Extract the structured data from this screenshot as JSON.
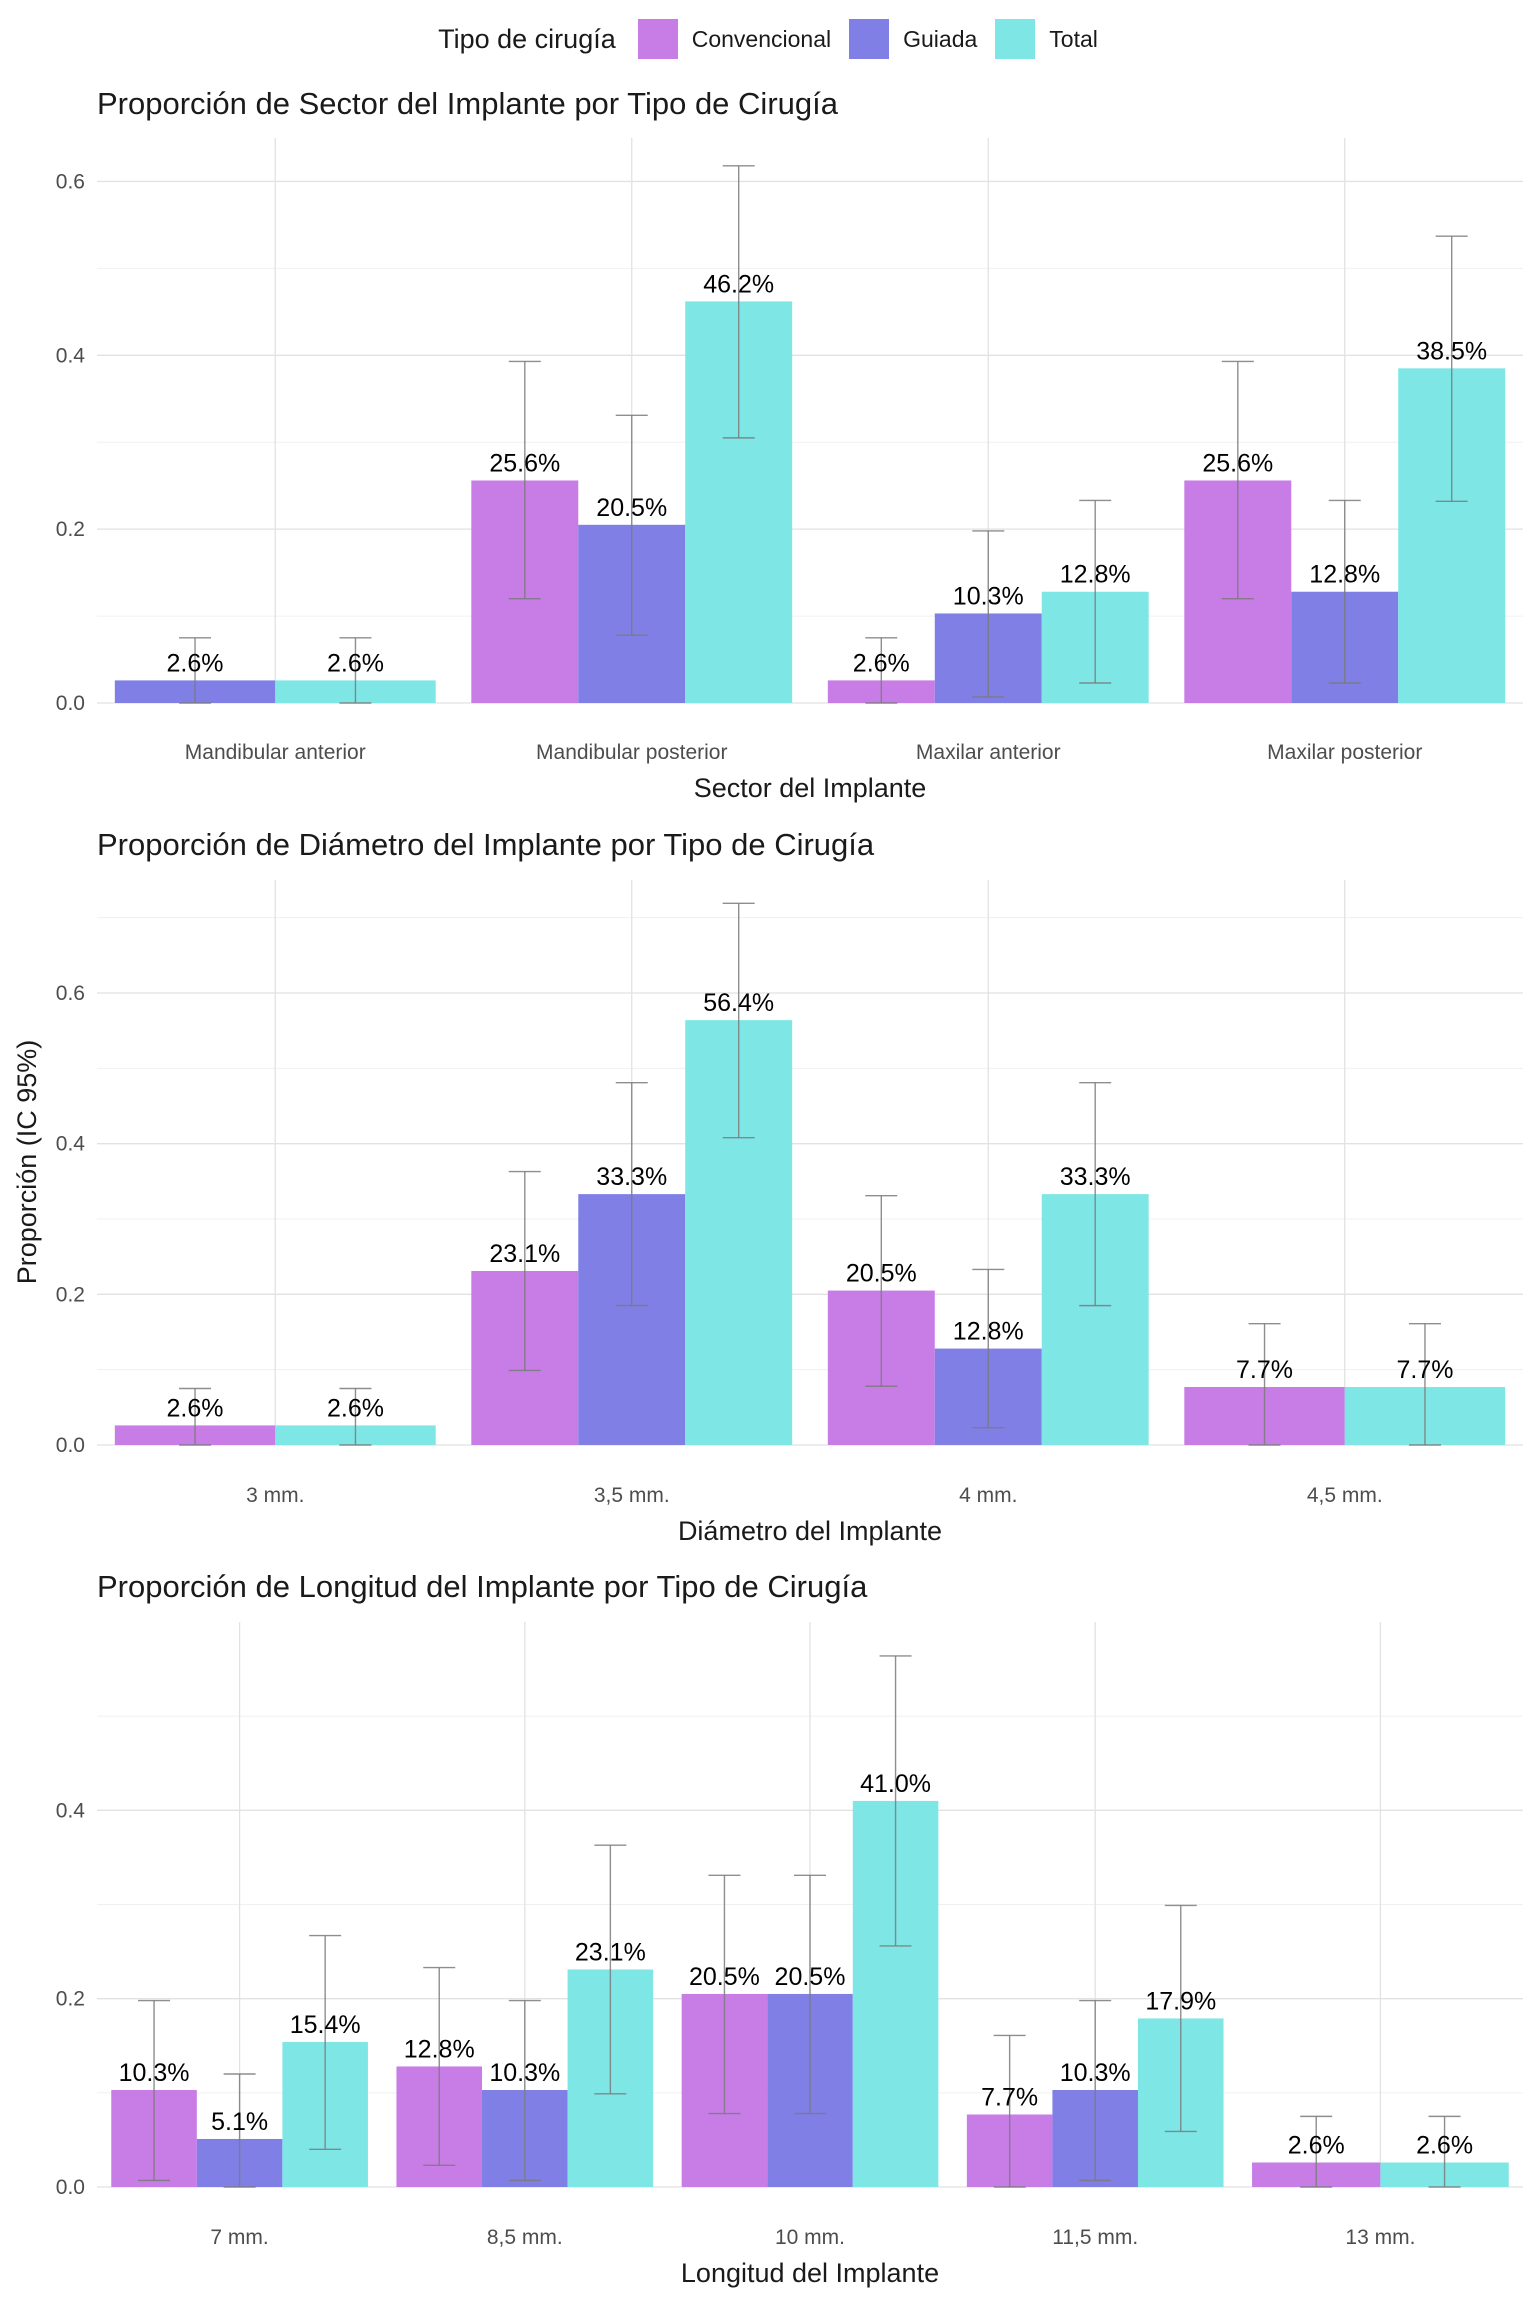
{
  "legend": {
    "title": "Tipo de cirugía",
    "items": [
      {
        "label": "Convencional",
        "color": "#C77CE6"
      },
      {
        "label": "Guiada",
        "color": "#7F7FE6"
      },
      {
        "label": "Total",
        "color": "#7FE6E6"
      }
    ]
  },
  "shared_ylabel": "Proporción (IC 95%)",
  "chart_data": [
    {
      "type": "bar",
      "title": "Proporción de Sector del Implante por Tipo de Cirugía",
      "xlabel": "Sector del Implante",
      "ylabel": "",
      "ylim": [
        0,
        0.65
      ],
      "yticks": [
        0,
        0.2,
        0.4,
        0.6
      ],
      "ytick_labels": [
        "0.0",
        "0.2",
        "0.4",
        "0.6"
      ],
      "grid": true,
      "categories": [
        "Mandibular anterior",
        "Mandibular posterior",
        "Maxilar anterior",
        "Maxilar posterior"
      ],
      "series": [
        {
          "name": "Convencional",
          "values": [
            null,
            0.256,
            0.026,
            0.256
          ],
          "ci_low": [
            null,
            0.12,
            0.0,
            0.12
          ],
          "ci_high": [
            null,
            0.393,
            0.075,
            0.393
          ],
          "labels": [
            null,
            "25.6%",
            "2.6%",
            "25.6%"
          ]
        },
        {
          "name": "Guiada",
          "values": [
            0.026,
            0.205,
            0.103,
            0.128
          ],
          "ci_low": [
            0.0,
            0.078,
            0.007,
            0.023
          ],
          "ci_high": [
            0.075,
            0.331,
            0.198,
            0.233
          ],
          "labels": [
            "2.6%",
            "20.5%",
            "10.3%",
            "12.8%"
          ]
        },
        {
          "name": "Total",
          "values": [
            0.026,
            0.462,
            0.128,
            0.385
          ],
          "ci_low": [
            0.0,
            0.305,
            0.023,
            0.232
          ],
          "ci_high": [
            0.075,
            0.618,
            0.233,
            0.537
          ],
          "labels": [
            "2.6%",
            "46.2%",
            "12.8%",
            "38.5%"
          ]
        }
      ]
    },
    {
      "type": "bar",
      "title": "Proporción de Diámetro del Implante por Tipo de Cirugía",
      "xlabel": "Diámetro del Implante",
      "ylabel": "Proporción (IC 95%)",
      "ylim": [
        0,
        0.75
      ],
      "yticks": [
        0,
        0.2,
        0.4,
        0.6
      ],
      "ytick_labels": [
        "0.0",
        "0.2",
        "0.4",
        "0.6"
      ],
      "grid": true,
      "categories": [
        "3 mm.",
        "3,5 mm.",
        "4 mm.",
        "4,5 mm."
      ],
      "series": [
        {
          "name": "Convencional",
          "values": [
            0.026,
            0.231,
            0.205,
            0.077
          ],
          "ci_low": [
            0.0,
            0.099,
            0.078,
            0.0
          ],
          "ci_high": [
            0.075,
            0.363,
            0.331,
            0.161
          ],
          "labels": [
            "2.6%",
            "23.1%",
            "20.5%",
            "7.7%"
          ]
        },
        {
          "name": "Guiada",
          "values": [
            null,
            0.333,
            0.128,
            null
          ],
          "ci_low": [
            null,
            0.185,
            0.023,
            null
          ],
          "ci_high": [
            null,
            0.481,
            0.233,
            null
          ],
          "labels": [
            null,
            "33.3%",
            "12.8%",
            null
          ]
        },
        {
          "name": "Total",
          "values": [
            0.026,
            0.564,
            0.333,
            0.077
          ],
          "ci_low": [
            0.0,
            0.408,
            0.185,
            0.0
          ],
          "ci_high": [
            0.075,
            0.719,
            0.481,
            0.161
          ],
          "labels": [
            "2.6%",
            "56.4%",
            "33.3%",
            "7.7%"
          ]
        }
      ]
    },
    {
      "type": "bar",
      "title": "Proporción de Longitud del Implante por Tipo de Cirugía",
      "xlabel": "Longitud del Implante",
      "ylabel": "",
      "ylim": [
        0,
        0.6
      ],
      "yticks": [
        0,
        0.2,
        0.4
      ],
      "ytick_labels": [
        "0.0",
        "0.2",
        "0.4"
      ],
      "grid": true,
      "categories": [
        "7 mm.",
        "8,5 mm.",
        "10 mm.",
        "11,5 mm.",
        "13 mm."
      ],
      "series": [
        {
          "name": "Convencional",
          "values": [
            0.103,
            0.128,
            0.205,
            0.077,
            0.026
          ],
          "ci_low": [
            0.007,
            0.023,
            0.078,
            0.0,
            0.0
          ],
          "ci_high": [
            0.198,
            0.233,
            0.331,
            0.161,
            0.075
          ],
          "labels": [
            "10.3%",
            "12.8%",
            "20.5%",
            "7.7%",
            "2.6%"
          ]
        },
        {
          "name": "Guiada",
          "values": [
            0.051,
            0.103,
            0.205,
            0.103,
            null
          ],
          "ci_low": [
            0.0,
            0.007,
            0.078,
            0.007,
            null
          ],
          "ci_high": [
            0.12,
            0.198,
            0.331,
            0.198,
            null
          ],
          "labels": [
            "5.1%",
            "10.3%",
            "20.5%",
            "10.3%",
            null
          ]
        },
        {
          "name": "Total",
          "values": [
            0.154,
            0.231,
            0.41,
            0.179,
            0.026
          ],
          "ci_low": [
            0.04,
            0.099,
            0.256,
            0.059,
            0.0
          ],
          "ci_high": [
            0.267,
            0.363,
            0.564,
            0.299,
            0.075
          ],
          "labels": [
            "15.4%",
            "23.1%",
            "41.0%",
            "17.9%",
            "2.6%"
          ]
        }
      ]
    }
  ]
}
